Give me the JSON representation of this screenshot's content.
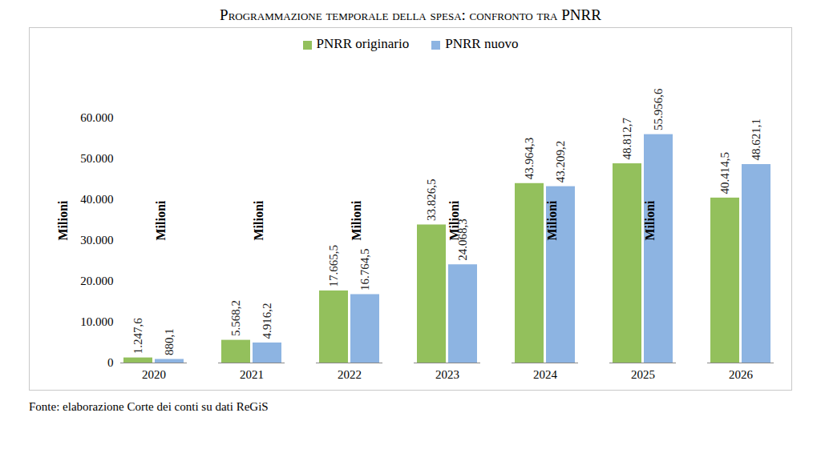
{
  "chart_data": {
    "type": "bar",
    "title": "Programmazione temporale della spesa: confronto tra PNRR",
    "y_label": "Milioni",
    "source": "Fonte: elaborazione Corte dei conti su dati ReGiS",
    "categories": [
      "2020",
      "2021",
      "2022",
      "2023",
      "2024",
      "2025",
      "2026"
    ],
    "series": [
      {
        "name": "PNRR originario",
        "color": "#93c05c",
        "values": [
          1247.6,
          5568.2,
          17665.5,
          33826.5,
          43964.3,
          48812.7,
          40414.5
        ],
        "value_labels": [
          "1.247,6",
          "5.568,2",
          "17.665,5",
          "33.826,5",
          "43.964,3",
          "48.812,7",
          "40.414,5"
        ]
      },
      {
        "name": "PNRR nuovo",
        "color": "#8db4e2",
        "values": [
          880.1,
          4916.2,
          16764.5,
          24068.3,
          43209.2,
          55956.6,
          48621.1
        ],
        "value_labels": [
          "880,1",
          "4.916,2",
          "16.764,5",
          "24.068,3",
          "43.209,2",
          "55.956,6",
          "48.621,1"
        ]
      }
    ],
    "ylim": [
      0,
      60000
    ],
    "yticks": [
      0,
      {
        "value": 10000,
        "label": "10.000"
      },
      {
        "value": 20000,
        "label": "20.000"
      },
      {
        "value": 30000,
        "label": "30.000"
      },
      {
        "value": 40000,
        "label": "40.000"
      },
      {
        "value": 50000,
        "label": "50.000"
      },
      {
        "value": 60000,
        "label": "60.000"
      }
    ],
    "grid": false,
    "legend": "top",
    "data_labels": true
  }
}
